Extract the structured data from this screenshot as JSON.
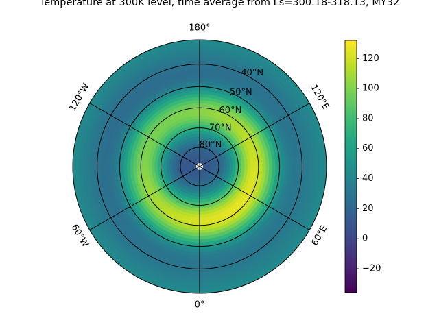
{
  "chart_data": {
    "type": "heatmap",
    "projection": "north-polar-stereographic",
    "title": "Temperature at 300K level, time average from Ls=300.18-318.13, MY32",
    "colormap": "viridis",
    "colorbar": {
      "vmin": -36,
      "vmax": 132,
      "ticks": [
        -20,
        0,
        20,
        40,
        60,
        80,
        100,
        120
      ],
      "placement": "right"
    },
    "latitude_circles": [
      "80°N",
      "70°N",
      "60°N",
      "50°N",
      "40°N"
    ],
    "latitude_values": [
      80,
      70,
      60,
      50,
      40
    ],
    "outer_latitude": 30,
    "longitude_lines": [
      {
        "lon": 0,
        "label": "0°"
      },
      {
        "lon": 60,
        "label": "60°E"
      },
      {
        "lon": 120,
        "label": "120°E"
      },
      {
        "lon": 180,
        "label": "180°"
      },
      {
        "lon": -120,
        "label": "120°W"
      },
      {
        "lon": -60,
        "label": "60°W"
      }
    ],
    "field_description": {
      "pole_value": 10,
      "ring_center_latitude": 62,
      "ring_peak_value": 112,
      "outer_edge_value": 45,
      "wave1_amplitude": 14,
      "wave1_peak_longitude": 45,
      "maximum_value": 125,
      "maximum_longitude": 45,
      "maximum_latitude": 60
    }
  }
}
